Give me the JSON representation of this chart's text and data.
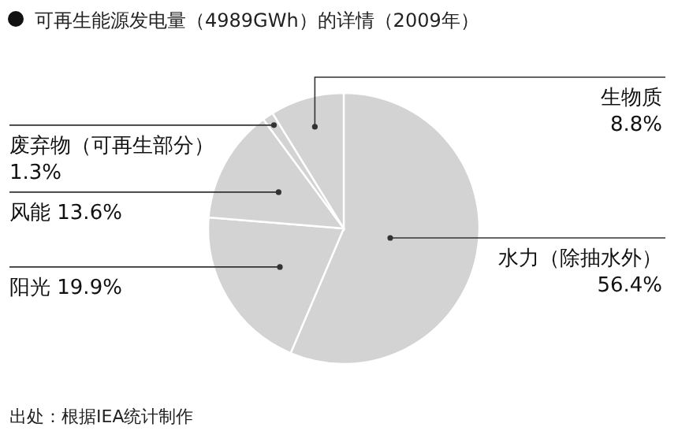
{
  "chart_data": {
    "type": "pie",
    "title": "可再生能源发电量（4989GWh）的详情（2009年）",
    "categories": [
      "水力（除抽水外）",
      "阳光",
      "风能",
      "废弃物（可再生部分）",
      "生物质"
    ],
    "values": [
      56.4,
      19.9,
      13.6,
      1.3,
      8.8
    ],
    "value_labels": [
      "56.4%",
      "19.9%",
      "13.6%",
      "1.3%",
      "8.8%"
    ],
    "colors": [
      "#d3d3d3",
      "#d3d3d3",
      "#d3d3d3",
      "#d3d3d3",
      "#d3d3d3"
    ],
    "annotations": [
      "出处：根据IEA统计制作"
    ],
    "legend": false
  }
}
